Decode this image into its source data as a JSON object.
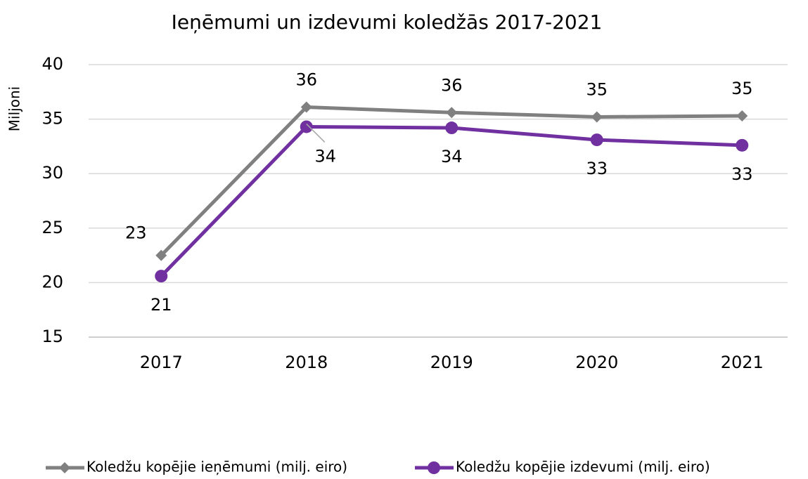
{
  "chart_data": {
    "type": "line",
    "title": "Ieņēmumi un izdevumi koledžās 2017-2021",
    "y_label": "Miljoni",
    "categories": [
      "2017",
      "2018",
      "2019",
      "2020",
      "2021"
    ],
    "series": [
      {
        "name": "Koledžu kopējie ieņēmumi (milj. eiro)",
        "color": "#808080",
        "marker": "diamond",
        "values": [
          22.5,
          36.1,
          35.6,
          35.2,
          35.3
        ],
        "value_labels": [
          "23",
          "36",
          "36",
          "35",
          "35"
        ]
      },
      {
        "name": "Koledžu kopējie izdevumi (milj. eiro)",
        "color": "#7030a0",
        "marker": "circle",
        "values": [
          20.6,
          34.3,
          34.2,
          33.1,
          32.6
        ],
        "value_labels": [
          "21",
          "34",
          "34",
          "33",
          "33"
        ]
      }
    ],
    "ylim": [
      15,
      40
    ],
    "yticks": [
      15,
      20,
      25,
      30,
      35,
      40
    ],
    "grid": true,
    "legend": "bottom"
  }
}
